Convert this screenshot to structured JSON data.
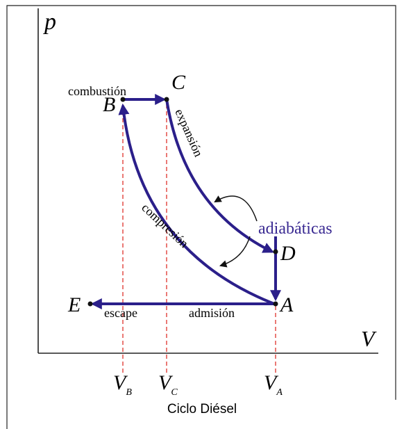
{
  "axes": {
    "y_label": "p",
    "x_label": "V"
  },
  "points": [
    {
      "label": "B"
    },
    {
      "label": "C"
    },
    {
      "label": "D"
    },
    {
      "label": "A"
    },
    {
      "label": "E"
    }
  ],
  "processes": {
    "combustion": "combustión",
    "expansion": "expansión",
    "adiabatic": "adiabáticas",
    "compression": "compresión",
    "exhaust": "escape",
    "intake": "admisión"
  },
  "ticks": [
    {
      "main": "V",
      "sub": "B"
    },
    {
      "main": "V",
      "sub": "C"
    },
    {
      "main": "V",
      "sub": "A"
    }
  ],
  "caption": "Ciclo Diésel"
}
